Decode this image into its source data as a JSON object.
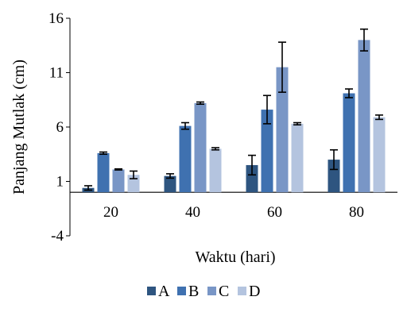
{
  "chart_data": {
    "type": "bar",
    "xlabel": "Waktu (hari)",
    "ylabel": "Panjang Mutlak (cm)",
    "ylim": [
      -4,
      16
    ],
    "yticks": [
      -4,
      1,
      6,
      11,
      16
    ],
    "categories": [
      "20",
      "40",
      "60",
      "80"
    ],
    "legend_position": "bottom",
    "gridlines": false,
    "series": [
      {
        "name": "A",
        "color": "#2e5580",
        "values": [
          0.4,
          1.5,
          2.5,
          3.0
        ],
        "errors": [
          0.2,
          0.2,
          0.9,
          0.9
        ]
      },
      {
        "name": "B",
        "color": "#3f71b0",
        "values": [
          3.6,
          6.1,
          7.6,
          9.1
        ],
        "errors": [
          0.1,
          0.3,
          1.3,
          0.4
        ]
      },
      {
        "name": "C",
        "color": "#7996c6",
        "values": [
          2.1,
          8.2,
          11.5,
          14.0
        ],
        "errors": [
          0.05,
          0.1,
          2.3,
          1.0
        ]
      },
      {
        "name": "D",
        "color": "#b4c4df",
        "values": [
          1.6,
          4.0,
          6.3,
          6.9
        ],
        "errors": [
          0.35,
          0.1,
          0.1,
          0.2
        ]
      }
    ]
  }
}
